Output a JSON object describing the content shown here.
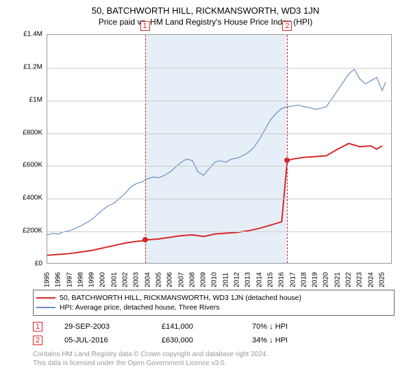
{
  "title": "50, BATCHWORTH HILL, RICKMANSWORTH, WD3 1JN",
  "subtitle": "Price paid vs. HM Land Registry's House Price Index (HPI)",
  "chart": {
    "type": "line",
    "background": "#ffffff",
    "grid_color": "#cccccc",
    "border_color": "#999999",
    "shade_color": "#e6eef7",
    "ylim": [
      0,
      1400000
    ],
    "ytick_step": 200000,
    "y_ticks": [
      "£0",
      "£200K",
      "£400K",
      "£600K",
      "£800K",
      "£1M",
      "£1.2M",
      "£1.4M"
    ],
    "xlim": [
      1995,
      2025.8
    ],
    "x_ticks": [
      "1995",
      "1996",
      "1997",
      "1998",
      "1999",
      "2000",
      "2001",
      "2002",
      "2003",
      "2004",
      "2005",
      "2006",
      "2007",
      "2008",
      "2009",
      "2010",
      "2011",
      "2012",
      "2013",
      "2014",
      "2015",
      "2016",
      "2017",
      "2018",
      "2019",
      "2020",
      "2021",
      "2022",
      "2023",
      "2024",
      "2025"
    ],
    "shade_range": [
      2003.75,
      2016.5
    ],
    "series": [
      {
        "name": "property",
        "color": "#d62728",
        "width": 2,
        "label": "50, BATCHWORTH HILL, RICKMANSWORTH, WD3 1JN (detached house)",
        "points": [
          [
            1995,
            50000
          ],
          [
            1996,
            55000
          ],
          [
            1997,
            60000
          ],
          [
            1998,
            70000
          ],
          [
            1999,
            80000
          ],
          [
            2000,
            95000
          ],
          [
            2001,
            110000
          ],
          [
            2002,
            125000
          ],
          [
            2003,
            135000
          ],
          [
            2003.75,
            141000
          ],
          [
            2004,
            145000
          ],
          [
            2005,
            150000
          ],
          [
            2006,
            160000
          ],
          [
            2007,
            170000
          ],
          [
            2008,
            175000
          ],
          [
            2009,
            165000
          ],
          [
            2010,
            180000
          ],
          [
            2011,
            185000
          ],
          [
            2012,
            190000
          ],
          [
            2013,
            200000
          ],
          [
            2014,
            215000
          ],
          [
            2015,
            235000
          ],
          [
            2016,
            255000
          ],
          [
            2016.5,
            630000
          ],
          [
            2017,
            640000
          ],
          [
            2018,
            650000
          ],
          [
            2019,
            655000
          ],
          [
            2020,
            660000
          ],
          [
            2021,
            700000
          ],
          [
            2022,
            735000
          ],
          [
            2023,
            715000
          ],
          [
            2024,
            720000
          ],
          [
            2024.5,
            700000
          ],
          [
            2025,
            720000
          ]
        ]
      },
      {
        "name": "hpi",
        "color": "#6890c0",
        "width": 1.2,
        "label": "HPI: Average price, detached house, Three Rivers",
        "points": [
          [
            1995,
            175000
          ],
          [
            1995.5,
            185000
          ],
          [
            1996,
            180000
          ],
          [
            1996.5,
            195000
          ],
          [
            1997,
            200000
          ],
          [
            1997.5,
            215000
          ],
          [
            1998,
            230000
          ],
          [
            1998.5,
            250000
          ],
          [
            1999,
            270000
          ],
          [
            1999.5,
            300000
          ],
          [
            2000,
            330000
          ],
          [
            2000.5,
            355000
          ],
          [
            2001,
            370000
          ],
          [
            2001.5,
            400000
          ],
          [
            2002,
            430000
          ],
          [
            2002.5,
            470000
          ],
          [
            2003,
            490000
          ],
          [
            2003.5,
            500000
          ],
          [
            2004,
            520000
          ],
          [
            2004.5,
            530000
          ],
          [
            2005,
            525000
          ],
          [
            2005.5,
            540000
          ],
          [
            2006,
            560000
          ],
          [
            2006.5,
            590000
          ],
          [
            2007,
            620000
          ],
          [
            2007.5,
            640000
          ],
          [
            2008,
            630000
          ],
          [
            2008.5,
            560000
          ],
          [
            2009,
            540000
          ],
          [
            2009.5,
            580000
          ],
          [
            2010,
            620000
          ],
          [
            2010.5,
            630000
          ],
          [
            2011,
            620000
          ],
          [
            2011.5,
            640000
          ],
          [
            2012,
            645000
          ],
          [
            2012.5,
            660000
          ],
          [
            2013,
            680000
          ],
          [
            2013.5,
            710000
          ],
          [
            2014,
            760000
          ],
          [
            2014.5,
            820000
          ],
          [
            2015,
            880000
          ],
          [
            2015.5,
            920000
          ],
          [
            2016,
            950000
          ],
          [
            2016.5,
            960000
          ],
          [
            2017,
            965000
          ],
          [
            2017.5,
            970000
          ],
          [
            2018,
            960000
          ],
          [
            2018.5,
            955000
          ],
          [
            2019,
            945000
          ],
          [
            2019.5,
            950000
          ],
          [
            2020,
            960000
          ],
          [
            2020.5,
            1010000
          ],
          [
            2021,
            1060000
          ],
          [
            2021.5,
            1110000
          ],
          [
            2022,
            1160000
          ],
          [
            2022.5,
            1190000
          ],
          [
            2023,
            1130000
          ],
          [
            2023.5,
            1100000
          ],
          [
            2024,
            1120000
          ],
          [
            2024.5,
            1140000
          ],
          [
            2025,
            1060000
          ],
          [
            2025.3,
            1110000
          ]
        ]
      }
    ],
    "markers": [
      {
        "n": "1",
        "x": 2003.75,
        "y": 141000,
        "box_color": "#d62728"
      },
      {
        "n": "2",
        "x": 2016.5,
        "y": 630000,
        "box_color": "#d62728"
      }
    ]
  },
  "legend": {
    "border_color": "#666666",
    "items": [
      {
        "color": "#d62728",
        "label": "50, BATCHWORTH HILL, RICKMANSWORTH, WD3 1JN (detached house)"
      },
      {
        "color": "#6890c0",
        "label": "HPI: Average price, detached house, Three Rivers"
      }
    ]
  },
  "events": [
    {
      "n": "1",
      "color": "#d62728",
      "date": "29-SEP-2003",
      "price": "£141,000",
      "delta": "70% ↓ HPI"
    },
    {
      "n": "2",
      "color": "#d62728",
      "date": "05-JUL-2016",
      "price": "£630,000",
      "delta": "34% ↓ HPI"
    }
  ],
  "footer_line1": "Contains HM Land Registry data © Crown copyright and database right 2024.",
  "footer_line2": "This data is licensed under the Open Government Licence v3.0."
}
